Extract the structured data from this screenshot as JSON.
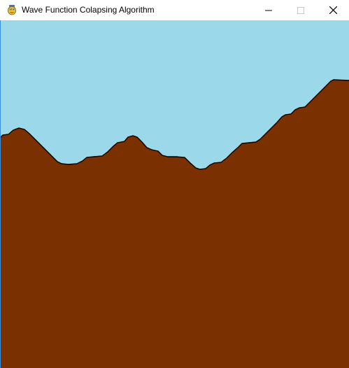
{
  "window": {
    "title": "Wave Function Colapsing Algorithm",
    "app_icon": "pygame-snake-icon",
    "controls": {
      "minimize_icon": "minimize-icon",
      "maximize_icon": "maximize-icon",
      "close_icon": "close-icon"
    }
  },
  "scene": {
    "sky_color": "#9ad8ea",
    "ground_color": "#7a3000",
    "outline_color": "#000000"
  }
}
